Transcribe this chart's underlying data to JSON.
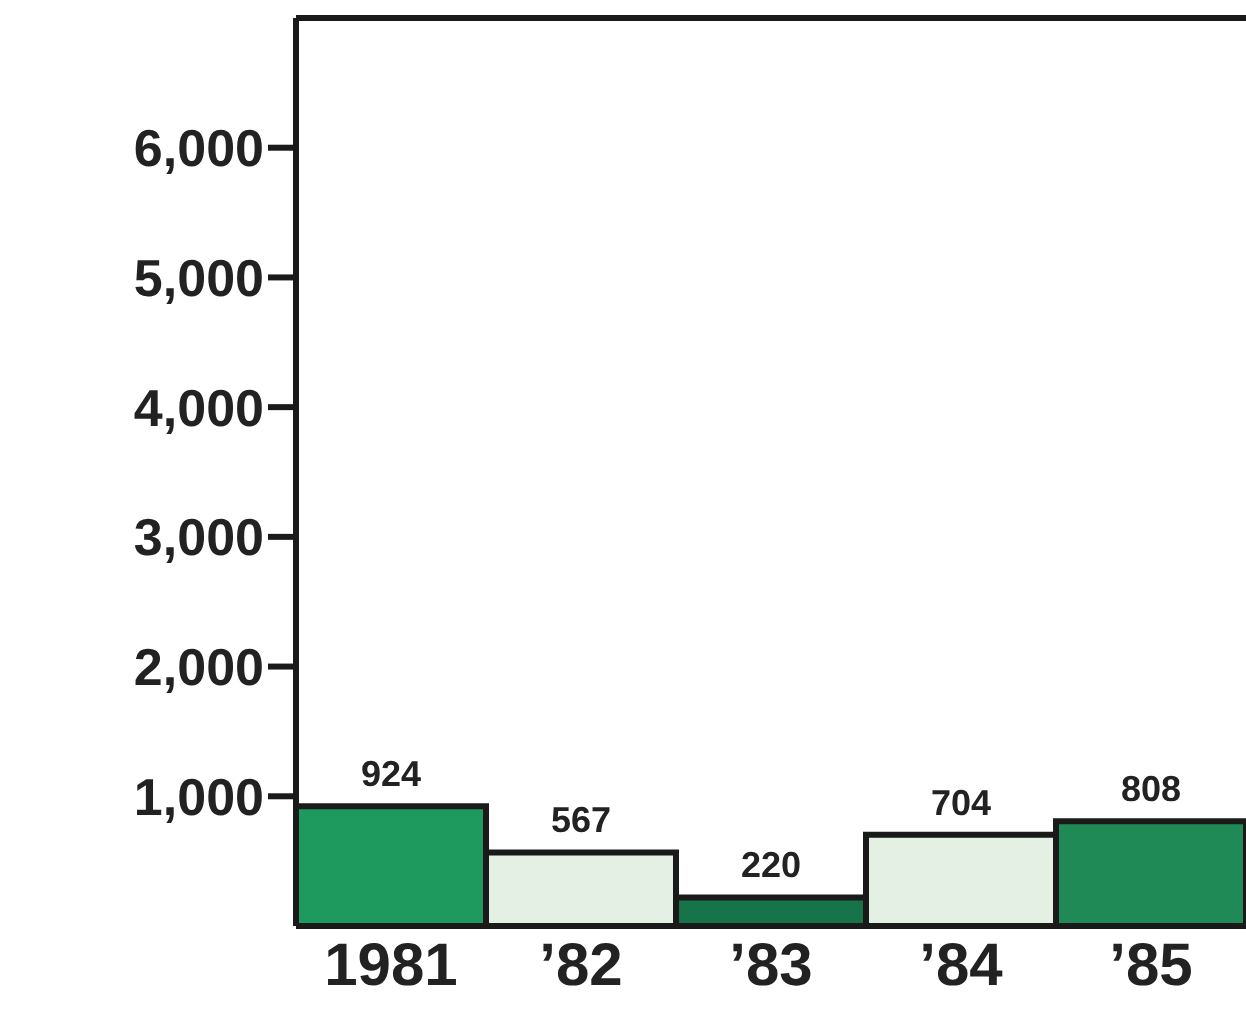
{
  "chart_data": {
    "type": "bar",
    "categories": [
      "1981",
      "’82",
      "’83",
      "’84",
      "’85"
    ],
    "values": [
      924,
      567,
      220,
      704,
      808
    ],
    "colors": [
      "#1f9a5f",
      "#e3f0e3",
      "#17744a",
      "#e3f0e3",
      "#1f8a55"
    ],
    "ylim": [
      0,
      7000
    ],
    "yticks": [
      {
        "value": 1000,
        "label": "1,000"
      },
      {
        "value": 2000,
        "label": "2,000"
      },
      {
        "value": 3000,
        "label": "3,000"
      },
      {
        "value": 4000,
        "label": "4,000"
      },
      {
        "value": 5000,
        "label": "5,000"
      },
      {
        "value": 6000,
        "label": "6,000"
      }
    ],
    "data_labels": true,
    "grid": false
  }
}
